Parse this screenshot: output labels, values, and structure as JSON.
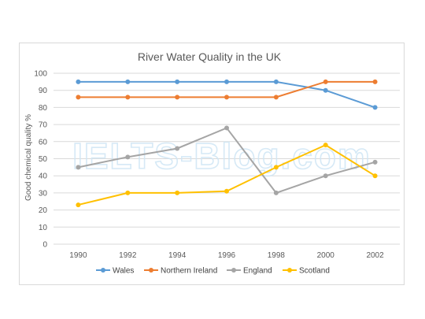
{
  "chart_data": {
    "type": "line",
    "title": "River Water Quality in the UK",
    "ylabel": "Good chemical quality %",
    "xlabel": "",
    "x": [
      "1990",
      "1992",
      "1994",
      "1996",
      "1998",
      "2000",
      "2002"
    ],
    "ylim": [
      0,
      100
    ],
    "yticks": [
      0,
      10,
      20,
      30,
      40,
      50,
      60,
      70,
      80,
      90,
      100
    ],
    "grid": true,
    "legend_position": "bottom",
    "series": [
      {
        "name": "Wales",
        "color": "#5b9bd5",
        "values": [
          95,
          95,
          95,
          95,
          95,
          90,
          80
        ]
      },
      {
        "name": "Northern Ireland",
        "color": "#ed7d31",
        "values": [
          86,
          86,
          86,
          86,
          86,
          95,
          95
        ]
      },
      {
        "name": "England",
        "color": "#a5a5a5",
        "values": [
          45,
          51,
          56,
          68,
          30,
          40,
          48
        ]
      },
      {
        "name": "Scotland",
        "color": "#ffc000",
        "values": [
          23,
          30,
          30,
          31,
          45,
          58,
          40
        ]
      }
    ]
  },
  "watermark": "IELTS-Blog.com"
}
